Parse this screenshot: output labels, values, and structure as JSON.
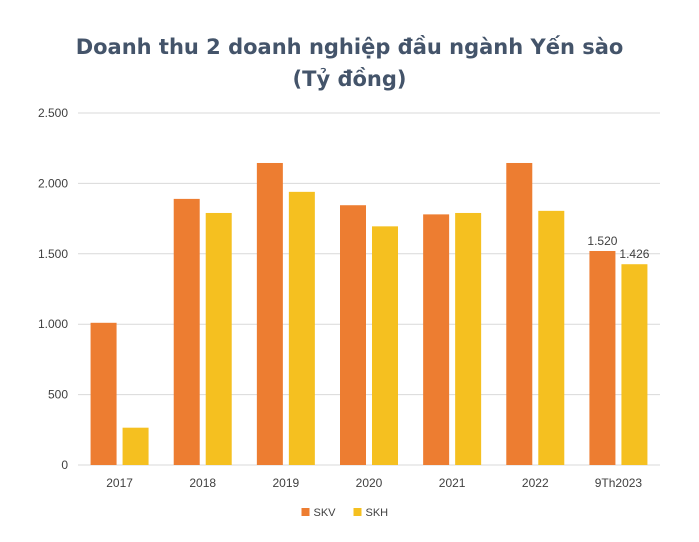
{
  "chart_data": {
    "type": "bar",
    "title_line1": "Doanh thu 2 doanh nghiệp đầu ngành Yến sào",
    "title_line2": "(Tỷ đồng)",
    "xlabel": "",
    "ylabel": "",
    "categories": [
      "2017",
      "2018",
      "2019",
      "2020",
      "2021",
      "2022",
      "9Th2023"
    ],
    "series": [
      {
        "name": "SKV",
        "color": "#ed7d31",
        "values": [
          1010,
          1890,
          2145,
          1845,
          1780,
          2145,
          1520
        ]
      },
      {
        "name": "SKH",
        "color": "#f5c020",
        "values": [
          265,
          1790,
          1940,
          1695,
          1790,
          1805,
          1426
        ]
      }
    ],
    "data_labels": [
      {
        "series": 0,
        "index": 6,
        "text": "1.520"
      },
      {
        "series": 1,
        "index": 6,
        "text": "1.426"
      }
    ],
    "ylim": [
      0,
      2500
    ],
    "yticks": [
      0,
      500,
      1000,
      1500,
      2000,
      2500
    ],
    "ytick_labels": [
      "0",
      "500",
      "1.000",
      "1.500",
      "2.000",
      "2.500"
    ],
    "grid": true,
    "legend_position": "bottom",
    "grid_color": "#d9d9d9",
    "axis_text_color": "#404040"
  }
}
